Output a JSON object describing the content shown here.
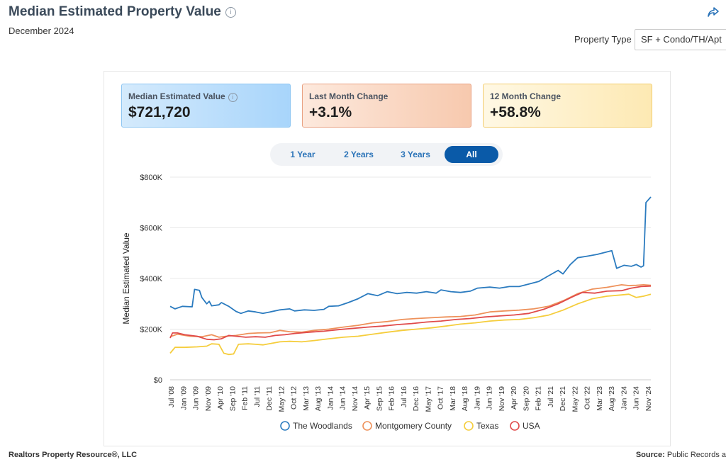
{
  "header": {
    "title": "Median Estimated Property Value",
    "subtitle": "December 2024",
    "property_type_label": "Property Type",
    "property_type_value": "SF + Condo/TH/Apt"
  },
  "cards": [
    {
      "label": "Median Estimated Value",
      "value": "$721,720"
    },
    {
      "label": "Last Month Change",
      "value": "+3.1%"
    },
    {
      "label": "12 Month Change",
      "value": "+58.8%"
    }
  ],
  "range_buttons": [
    {
      "label": "1 Year"
    },
    {
      "label": "2 Years"
    },
    {
      "label": "3 Years"
    },
    {
      "label": "All",
      "active": true
    }
  ],
  "footer": {
    "left": "Realtors Property Resource®, LLC",
    "right_bold": "Source:",
    "right_text": "Public Records a"
  },
  "colors": {
    "The Woodlands": "#2b7bbf",
    "Montgomery County": "#ee915a",
    "Texas": "#f5cd3c",
    "USA": "#e04a4a"
  },
  "chart_data": {
    "type": "line",
    "ylabel": "Median Estimated Value",
    "xlabel": "",
    "ylim": [
      0,
      800000
    ],
    "y_ticks": [
      0,
      200000,
      400000,
      600000,
      800000
    ],
    "y_tick_labels": [
      "$0",
      "$200K",
      "$400K",
      "$600K",
      "$800K"
    ],
    "x_tick_labels": [
      "Jul '08",
      "Jan '09",
      "Jun '09",
      "Nov '09",
      "Apr '10",
      "Sep '10",
      "Feb '11",
      "Jul '11",
      "Dec '11",
      "May '12",
      "Oct '12",
      "Mar '13",
      "Aug '13",
      "Jan '14",
      "Jun '14",
      "Nov '14",
      "Apr '15",
      "Sep '15",
      "Feb '16",
      "Jul '16",
      "Dec '16",
      "May '17",
      "Oct '17",
      "Mar '18",
      "Aug '18",
      "Jan '19",
      "Jun '19",
      "Nov '19",
      "Apr '20",
      "Sep '20",
      "Feb '21",
      "Jul '21",
      "Dec '21",
      "May '22",
      "Oct '22",
      "Mar '23",
      "Aug '23",
      "Jan '24",
      "Jun '24",
      "Nov '24"
    ],
    "x_range": [
      "2008-07",
      "2024-12"
    ],
    "grid": true,
    "legend_position": "bottom",
    "series": [
      {
        "name": "The Woodlands",
        "points": [
          [
            "2008-07",
            290000
          ],
          [
            "2008-09",
            280000
          ],
          [
            "2008-12",
            290000
          ],
          [
            "2009-04",
            288000
          ],
          [
            "2009-05",
            357000
          ],
          [
            "2009-07",
            353000
          ],
          [
            "2009-08",
            325000
          ],
          [
            "2009-10",
            300000
          ],
          [
            "2009-11",
            310000
          ],
          [
            "2009-12",
            292000
          ],
          [
            "2010-03",
            296000
          ],
          [
            "2010-04",
            305000
          ],
          [
            "2010-07",
            290000
          ],
          [
            "2010-10",
            270000
          ],
          [
            "2010-12",
            262000
          ],
          [
            "2011-03",
            272000
          ],
          [
            "2011-06",
            268000
          ],
          [
            "2011-09",
            262000
          ],
          [
            "2011-12",
            268000
          ],
          [
            "2012-04",
            276000
          ],
          [
            "2012-08",
            280000
          ],
          [
            "2012-10",
            272000
          ],
          [
            "2013-02",
            276000
          ],
          [
            "2013-06",
            274000
          ],
          [
            "2013-10",
            278000
          ],
          [
            "2013-12",
            290000
          ],
          [
            "2014-04",
            292000
          ],
          [
            "2014-08",
            305000
          ],
          [
            "2014-12",
            320000
          ],
          [
            "2015-04",
            340000
          ],
          [
            "2015-08",
            332000
          ],
          [
            "2015-12",
            348000
          ],
          [
            "2016-04",
            340000
          ],
          [
            "2016-08",
            345000
          ],
          [
            "2016-12",
            342000
          ],
          [
            "2017-04",
            348000
          ],
          [
            "2017-08",
            342000
          ],
          [
            "2017-10",
            355000
          ],
          [
            "2018-02",
            348000
          ],
          [
            "2018-06",
            345000
          ],
          [
            "2018-10",
            350000
          ],
          [
            "2019-01",
            362000
          ],
          [
            "2019-06",
            366000
          ],
          [
            "2019-10",
            362000
          ],
          [
            "2020-02",
            368000
          ],
          [
            "2020-06",
            368000
          ],
          [
            "2020-10",
            378000
          ],
          [
            "2021-02",
            388000
          ],
          [
            "2021-06",
            410000
          ],
          [
            "2021-10",
            432000
          ],
          [
            "2021-12",
            418000
          ],
          [
            "2022-03",
            455000
          ],
          [
            "2022-06",
            482000
          ],
          [
            "2022-10",
            488000
          ],
          [
            "2023-02",
            495000
          ],
          [
            "2023-06",
            505000
          ],
          [
            "2023-08",
            510000
          ],
          [
            "2023-10",
            440000
          ],
          [
            "2024-01",
            452000
          ],
          [
            "2024-04",
            448000
          ],
          [
            "2024-06",
            455000
          ],
          [
            "2024-08",
            445000
          ],
          [
            "2024-09",
            450000
          ],
          [
            "2024-10",
            700000
          ],
          [
            "2024-12",
            721720
          ]
        ]
      },
      {
        "name": "Montgomery County",
        "points": [
          [
            "2008-07",
            170000
          ],
          [
            "2008-10",
            180000
          ],
          [
            "2009-03",
            172000
          ],
          [
            "2009-08",
            170000
          ],
          [
            "2009-12",
            178000
          ],
          [
            "2010-03",
            168000
          ],
          [
            "2010-06",
            172000
          ],
          [
            "2010-10",
            175000
          ],
          [
            "2011-03",
            183000
          ],
          [
            "2011-07",
            185000
          ],
          [
            "2011-12",
            186000
          ],
          [
            "2012-04",
            195000
          ],
          [
            "2012-08",
            190000
          ],
          [
            "2013-01",
            188000
          ],
          [
            "2013-06",
            195000
          ],
          [
            "2013-12",
            200000
          ],
          [
            "2014-06",
            208000
          ],
          [
            "2014-12",
            215000
          ],
          [
            "2015-06",
            225000
          ],
          [
            "2015-12",
            230000
          ],
          [
            "2016-06",
            238000
          ],
          [
            "2016-12",
            242000
          ],
          [
            "2017-06",
            245000
          ],
          [
            "2017-12",
            248000
          ],
          [
            "2018-06",
            250000
          ],
          [
            "2018-12",
            256000
          ],
          [
            "2019-06",
            268000
          ],
          [
            "2019-12",
            272000
          ],
          [
            "2020-06",
            275000
          ],
          [
            "2020-12",
            280000
          ],
          [
            "2021-06",
            290000
          ],
          [
            "2021-12",
            312000
          ],
          [
            "2022-06",
            340000
          ],
          [
            "2022-12",
            358000
          ],
          [
            "2023-06",
            365000
          ],
          [
            "2023-12",
            375000
          ],
          [
            "2024-03",
            372000
          ],
          [
            "2024-06",
            373000
          ],
          [
            "2024-09",
            375000
          ],
          [
            "2024-12",
            373000
          ]
        ]
      },
      {
        "name": "Texas",
        "points": [
          [
            "2008-07",
            105000
          ],
          [
            "2008-09",
            128000
          ],
          [
            "2009-01",
            128000
          ],
          [
            "2009-06",
            130000
          ],
          [
            "2009-10",
            133000
          ],
          [
            "2009-12",
            142000
          ],
          [
            "2010-03",
            140000
          ],
          [
            "2010-05",
            105000
          ],
          [
            "2010-07",
            100000
          ],
          [
            "2010-09",
            102000
          ],
          [
            "2010-11",
            140000
          ],
          [
            "2011-03",
            142000
          ],
          [
            "2011-06",
            140000
          ],
          [
            "2011-09",
            138000
          ],
          [
            "2011-12",
            143000
          ],
          [
            "2012-04",
            150000
          ],
          [
            "2012-08",
            152000
          ],
          [
            "2013-01",
            150000
          ],
          [
            "2013-06",
            155000
          ],
          [
            "2013-12",
            162000
          ],
          [
            "2014-06",
            168000
          ],
          [
            "2014-12",
            172000
          ],
          [
            "2015-06",
            180000
          ],
          [
            "2015-12",
            188000
          ],
          [
            "2016-06",
            195000
          ],
          [
            "2016-12",
            200000
          ],
          [
            "2017-06",
            205000
          ],
          [
            "2017-12",
            212000
          ],
          [
            "2018-06",
            220000
          ],
          [
            "2018-12",
            225000
          ],
          [
            "2019-06",
            232000
          ],
          [
            "2019-12",
            236000
          ],
          [
            "2020-06",
            238000
          ],
          [
            "2020-12",
            245000
          ],
          [
            "2021-06",
            255000
          ],
          [
            "2021-12",
            275000
          ],
          [
            "2022-06",
            300000
          ],
          [
            "2022-12",
            320000
          ],
          [
            "2023-06",
            330000
          ],
          [
            "2023-12",
            335000
          ],
          [
            "2024-03",
            338000
          ],
          [
            "2024-06",
            325000
          ],
          [
            "2024-09",
            330000
          ],
          [
            "2024-12",
            338000
          ]
        ]
      },
      {
        "name": "USA",
        "points": [
          [
            "2008-07",
            165000
          ],
          [
            "2008-08",
            185000
          ],
          [
            "2008-10",
            185000
          ],
          [
            "2009-01",
            178000
          ],
          [
            "2009-06",
            172000
          ],
          [
            "2009-10",
            160000
          ],
          [
            "2010-01",
            158000
          ],
          [
            "2010-04",
            162000
          ],
          [
            "2010-07",
            175000
          ],
          [
            "2010-10",
            172000
          ],
          [
            "2011-02",
            168000
          ],
          [
            "2011-06",
            170000
          ],
          [
            "2011-10",
            168000
          ],
          [
            "2012-02",
            175000
          ],
          [
            "2012-06",
            178000
          ],
          [
            "2012-10",
            183000
          ],
          [
            "2013-04",
            188000
          ],
          [
            "2013-10",
            192000
          ],
          [
            "2014-04",
            198000
          ],
          [
            "2014-10",
            203000
          ],
          [
            "2015-04",
            208000
          ],
          [
            "2015-10",
            212000
          ],
          [
            "2016-04",
            218000
          ],
          [
            "2016-10",
            222000
          ],
          [
            "2017-04",
            228000
          ],
          [
            "2017-10",
            232000
          ],
          [
            "2018-04",
            238000
          ],
          [
            "2018-10",
            242000
          ],
          [
            "2019-04",
            248000
          ],
          [
            "2019-10",
            252000
          ],
          [
            "2020-04",
            256000
          ],
          [
            "2020-10",
            262000
          ],
          [
            "2021-04",
            278000
          ],
          [
            "2021-10",
            300000
          ],
          [
            "2022-04",
            328000
          ],
          [
            "2022-08",
            345000
          ],
          [
            "2023-01",
            342000
          ],
          [
            "2023-06",
            350000
          ],
          [
            "2023-12",
            352000
          ],
          [
            "2024-04",
            362000
          ],
          [
            "2024-08",
            368000
          ],
          [
            "2024-12",
            370000
          ]
        ]
      }
    ]
  }
}
